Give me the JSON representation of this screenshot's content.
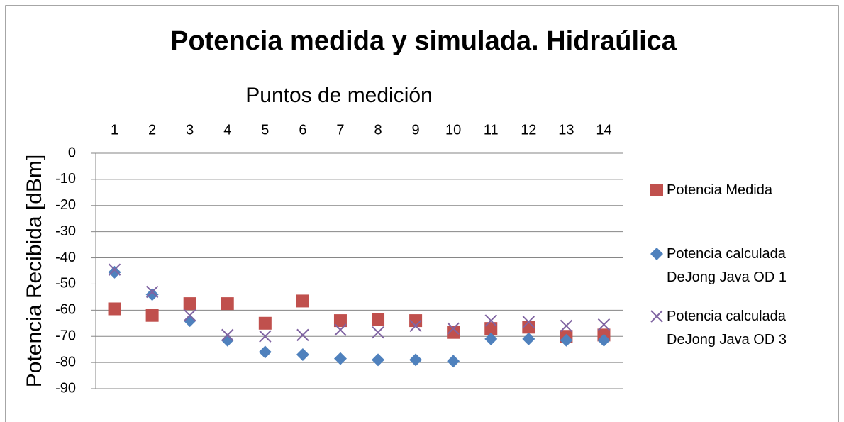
{
  "chart_data": {
    "type": "scatter",
    "title": "Potencia medida y simulada. Hidraúlica",
    "x_label": "Puntos de medición",
    "y_label": "Potencia Recibida [dBm]",
    "categories": [
      "1",
      "2",
      "3",
      "4",
      "5",
      "6",
      "7",
      "8",
      "9",
      "10",
      "11",
      "12",
      "13",
      "14"
    ],
    "series": [
      {
        "name": "Potencia Medida",
        "color": "#c0504d",
        "marker": "square",
        "values": [
          -59.5,
          -62,
          -57.5,
          -57.5,
          -65,
          -56.5,
          -64,
          -63.5,
          -64,
          -68.5,
          -67,
          -66.5,
          -70,
          -69.5
        ]
      },
      {
        "name": "Potencia calculada DeJong Java OD 1",
        "color": "#4f81bd",
        "marker": "diamond",
        "values": [
          -45.5,
          -54,
          -64,
          -71.5,
          -76,
          -77,
          -78.5,
          -79,
          -79,
          -79.5,
          -71,
          -71,
          -71.5,
          -71.5
        ]
      },
      {
        "name": "Potencia calculada DeJong Java OD 3",
        "color": "#8064a2",
        "marker": "x",
        "values": [
          -44.5,
          -53,
          -62,
          -69.5,
          -70,
          -69.5,
          -67.5,
          -68.5,
          -66,
          -67,
          -64,
          -64.5,
          -66,
          -65.5
        ]
      }
    ],
    "ylim": [
      -90,
      0
    ],
    "yticks": [
      0,
      -10,
      -20,
      -30,
      -40,
      -50,
      -60,
      -70,
      -80,
      -90
    ],
    "grid": true,
    "legend": "right"
  }
}
